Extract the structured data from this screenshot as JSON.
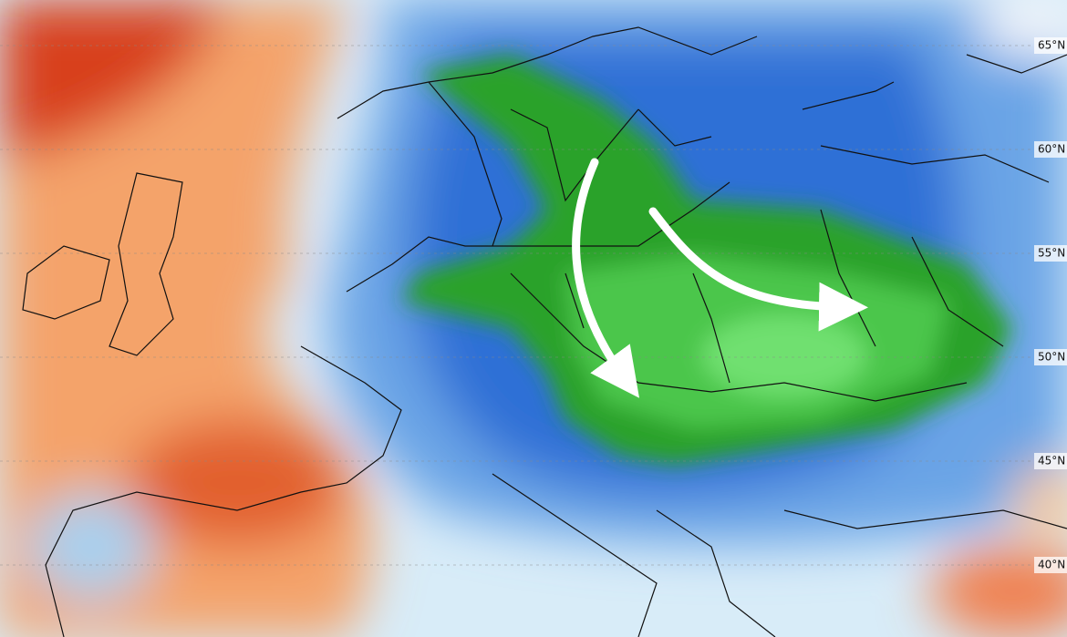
{
  "map": {
    "lat_labels": [
      "65°N",
      "60°N",
      "55°N",
      "50°N",
      "45°N",
      "40°N"
    ]
  }
}
